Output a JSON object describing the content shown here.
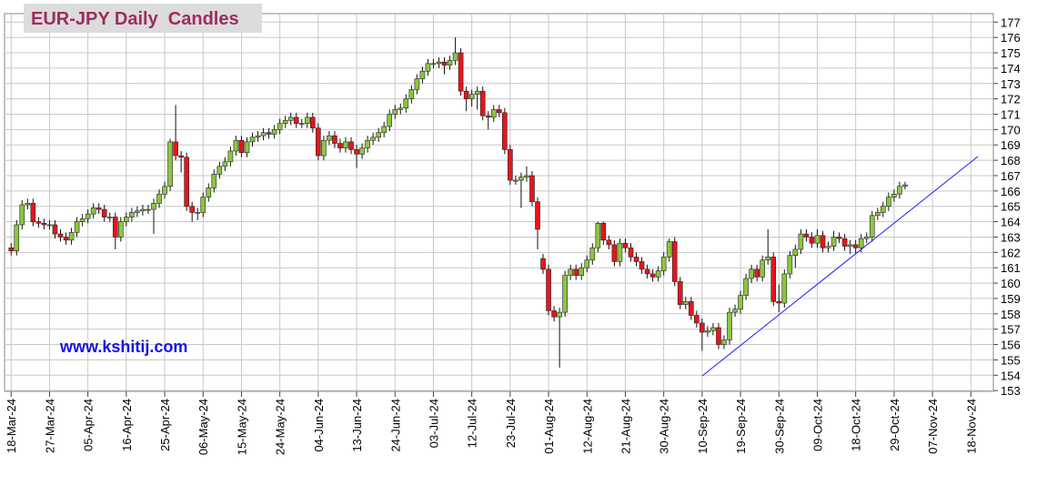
{
  "chart_data": {
    "type": "candlestick",
    "title": "EUR-JPY Daily  Candles",
    "watermark": "www.kshitij.com",
    "up_color": "#8cc63f",
    "down_color": "#e8141c",
    "grid": true,
    "xlim": [
      -1.2,
      179.1
    ],
    "xticks": [
      {
        "value": 0,
        "label": "18-Mar-24"
      },
      {
        "value": 7,
        "label": "27-Mar-24"
      },
      {
        "value": 14,
        "label": "05-Apr-24"
      },
      {
        "value": 21,
        "label": "16-Apr-24"
      },
      {
        "value": 28,
        "label": "25-Apr-24"
      },
      {
        "value": 35,
        "label": "06-May-24"
      },
      {
        "value": 42,
        "label": "15-May-24"
      },
      {
        "value": 49,
        "label": "24-May-24"
      },
      {
        "value": 56,
        "label": "04-Jun-24"
      },
      {
        "value": 63,
        "label": "13-Jun-24"
      },
      {
        "value": 70,
        "label": "24-Jun-24"
      },
      {
        "value": 77,
        "label": "03-Jul-24"
      },
      {
        "value": 84,
        "label": "12-Jul-24"
      },
      {
        "value": 91,
        "label": "23-Jul-24"
      },
      {
        "value": 98,
        "label": "01-Aug-24"
      },
      {
        "value": 105,
        "label": "12-Aug-24"
      },
      {
        "value": 112,
        "label": "21-Aug-24"
      },
      {
        "value": 119,
        "label": "30-Aug-24"
      },
      {
        "value": 126,
        "label": "10-Sep-24"
      },
      {
        "value": 133,
        "label": "19-Sep-24"
      },
      {
        "value": 140,
        "label": "30-Sep-24"
      },
      {
        "value": 147,
        "label": "09-Oct-24"
      },
      {
        "value": 154,
        "label": "18-Oct-24"
      },
      {
        "value": 161,
        "label": "29-Oct-24"
      },
      {
        "value": 168,
        "label": "07-Nov-24"
      },
      {
        "value": 175,
        "label": "18-Nov-24"
      }
    ],
    "ylim": [
      152.95,
      177.55
    ],
    "yticks": [
      153,
      154,
      155,
      156,
      157,
      158,
      159,
      160,
      161,
      162,
      163,
      164,
      165,
      166,
      167,
      168,
      169,
      170,
      171,
      172,
      173,
      174,
      175,
      176,
      177
    ],
    "x": [
      0,
      1,
      2,
      3,
      4,
      5,
      6,
      7,
      8,
      9,
      10,
      11,
      12,
      13,
      14,
      15,
      16,
      17,
      18,
      19,
      20,
      21,
      22,
      23,
      24,
      25,
      26,
      27,
      28,
      29,
      30,
      31,
      32,
      33,
      34,
      35,
      36,
      37,
      38,
      39,
      40,
      41,
      42,
      43,
      44,
      45,
      46,
      47,
      48,
      49,
      50,
      51,
      52,
      53,
      54,
      55,
      56,
      57,
      58,
      59,
      60,
      61,
      62,
      63,
      64,
      65,
      66,
      67,
      68,
      69,
      70,
      71,
      72,
      73,
      74,
      75,
      76,
      77,
      78,
      79,
      80,
      81,
      82,
      83,
      84,
      85,
      86,
      87,
      88,
      89,
      90,
      91,
      92,
      93,
      94,
      95,
      96,
      97,
      98,
      99,
      100,
      101,
      102,
      103,
      104,
      105,
      106,
      107,
      108,
      109,
      110,
      111,
      112,
      113,
      114,
      115,
      116,
      117,
      118,
      119,
      120,
      121,
      122,
      123,
      124,
      125,
      126,
      127,
      128,
      129,
      130,
      131,
      132,
      133,
      134,
      135,
      136,
      137,
      138,
      139,
      140,
      141,
      142,
      143,
      144,
      145,
      146,
      147,
      148,
      149,
      150,
      151,
      152,
      153,
      154,
      155,
      156,
      157,
      158,
      159,
      160,
      161,
      162,
      163
    ],
    "open": [
      162.3,
      162.1,
      163.8,
      165.1,
      165.2,
      164.0,
      163.9,
      163.8,
      163.8,
      163.2,
      163.0,
      162.8,
      163.3,
      164.0,
      164.2,
      164.5,
      164.9,
      164.8,
      164.3,
      164.3,
      163.0,
      164.0,
      164.3,
      164.6,
      164.7,
      164.8,
      164.8,
      165.2,
      165.8,
      166.3,
      169.2,
      168.3,
      168.2,
      165.0,
      164.6,
      164.6,
      165.6,
      166.2,
      167.1,
      167.6,
      167.9,
      168.6,
      169.3,
      168.5,
      169.2,
      169.5,
      169.6,
      169.8,
      169.7,
      170.0,
      170.4,
      170.6,
      170.8,
      170.4,
      170.4,
      170.8,
      170.1,
      168.3,
      169.3,
      169.6,
      169.1,
      168.8,
      169.2,
      168.7,
      168.4,
      168.8,
      169.3,
      169.5,
      169.8,
      170.2,
      171.0,
      171.3,
      171.4,
      172.0,
      172.6,
      173.3,
      173.8,
      174.3,
      174.3,
      174.4,
      174.2,
      174.5,
      175.0,
      172.5,
      172.0,
      172.3,
      172.5,
      170.9,
      170.8,
      171.3,
      171.1,
      168.7,
      166.7,
      166.7,
      166.9,
      167.0,
      165.3,
      161.6,
      160.9,
      158.2,
      157.8,
      158.1,
      160.5,
      160.9,
      160.5,
      161.0,
      161.5,
      162.3,
      163.9,
      162.8,
      162.5,
      161.4,
      162.6,
      162.3,
      161.7,
      161.4,
      160.9,
      160.6,
      160.4,
      160.8,
      161.7,
      162.7,
      160.1,
      158.6,
      158.8,
      157.9,
      157.4,
      156.8,
      156.9,
      157.1,
      156.0,
      156.3,
      158.1,
      158.3,
      159.2,
      160.3,
      160.9,
      160.4,
      161.5,
      161.7,
      158.8,
      158.7,
      160.6,
      161.8,
      162.2,
      163.2,
      163.0,
      162.6,
      163.1,
      162.3,
      162.4,
      163.0,
      162.9,
      162.4,
      162.5,
      162.3,
      162.9,
      163.0,
      164.4,
      164.6,
      165.0,
      165.6,
      165.8,
      166.3
    ],
    "high": [
      162.6,
      164.1,
      165.4,
      165.5,
      165.5,
      164.3,
      164.2,
      164.1,
      164.1,
      163.5,
      163.3,
      163.6,
      164.3,
      164.5,
      164.8,
      165.2,
      165.2,
      165.1,
      164.6,
      164.6,
      164.3,
      164.6,
      164.9,
      165.0,
      165.1,
      165.1,
      165.5,
      166.1,
      166.6,
      169.4,
      171.6,
      168.6,
      168.5,
      165.3,
      164.9,
      165.9,
      166.5,
      167.4,
      167.9,
      168.2,
      168.9,
      169.6,
      169.6,
      169.5,
      169.8,
      169.9,
      170.1,
      170.1,
      170.3,
      170.7,
      170.9,
      171.1,
      171.1,
      170.7,
      171.1,
      171.1,
      170.4,
      169.6,
      169.9,
      169.9,
      169.4,
      169.5,
      169.5,
      169.0,
      169.1,
      169.6,
      169.8,
      170.1,
      170.5,
      171.3,
      171.6,
      171.7,
      172.3,
      172.9,
      173.6,
      174.1,
      174.6,
      174.6,
      174.7,
      174.7,
      174.8,
      176.0,
      175.3,
      172.8,
      172.6,
      172.8,
      172.8,
      171.2,
      171.6,
      171.6,
      171.4,
      169.0,
      167.0,
      167.2,
      167.6,
      167.3,
      165.6,
      161.9,
      161.2,
      158.5,
      158.4,
      160.8,
      161.2,
      161.2,
      161.3,
      161.8,
      162.6,
      164.0,
      164.0,
      163.1,
      162.8,
      162.9,
      162.9,
      162.6,
      162.0,
      161.7,
      161.2,
      160.9,
      161.1,
      162.0,
      162.9,
      163.0,
      160.4,
      159.1,
      159.1,
      158.2,
      157.7,
      157.2,
      157.4,
      157.4,
      156.6,
      158.4,
      158.6,
      159.5,
      160.6,
      161.2,
      161.2,
      161.8,
      163.5,
      162.0,
      159.9,
      160.9,
      162.1,
      162.5,
      163.5,
      163.5,
      163.3,
      163.5,
      163.4,
      162.7,
      163.4,
      163.3,
      163.2,
      162.8,
      162.8,
      163.2,
      163.3,
      164.7,
      164.9,
      165.3,
      165.9,
      166.1,
      166.6,
      166.6
    ],
    "low": [
      161.8,
      161.8,
      163.5,
      164.8,
      163.7,
      163.6,
      163.5,
      163.5,
      162.9,
      162.7,
      162.5,
      162.5,
      163.0,
      163.7,
      163.9,
      164.2,
      164.5,
      164.0,
      164.0,
      162.2,
      162.7,
      163.7,
      164.0,
      164.3,
      164.4,
      164.5,
      163.2,
      164.9,
      165.5,
      166.0,
      168.0,
      167.2,
      164.7,
      164.0,
      164.1,
      164.3,
      165.3,
      165.9,
      166.8,
      167.3,
      167.6,
      168.3,
      168.2,
      168.2,
      168.9,
      169.2,
      169.3,
      169.4,
      169.4,
      169.7,
      170.1,
      170.3,
      170.1,
      170.1,
      170.1,
      169.8,
      168.0,
      168.0,
      169.0,
      168.8,
      168.5,
      168.5,
      168.4,
      167.5,
      168.1,
      168.5,
      169.0,
      169.2,
      169.5,
      169.9,
      170.7,
      171.0,
      171.1,
      171.7,
      172.3,
      173.0,
      173.5,
      174.0,
      174.0,
      173.6,
      173.9,
      174.2,
      172.2,
      171.2,
      171.5,
      171.3,
      170.6,
      170.0,
      170.5,
      170.8,
      168.4,
      166.4,
      166.4,
      164.9,
      166.6,
      165.0,
      162.2,
      160.6,
      157.9,
      157.5,
      154.5,
      157.8,
      160.2,
      160.2,
      160.2,
      160.7,
      161.2,
      162.0,
      162.5,
      162.2,
      161.1,
      161.1,
      162.0,
      161.4,
      161.1,
      160.6,
      160.3,
      160.1,
      160.1,
      160.5,
      161.4,
      159.8,
      158.3,
      158.3,
      157.6,
      157.1,
      155.6,
      156.5,
      156.6,
      155.7,
      155.7,
      156.0,
      157.8,
      158.0,
      158.9,
      160.0,
      160.1,
      160.1,
      161.2,
      158.5,
      158.1,
      158.4,
      160.3,
      161.0,
      161.9,
      162.7,
      162.3,
      162.3,
      162.0,
      162.0,
      162.1,
      162.6,
      162.1,
      161.9,
      161.9,
      162.0,
      162.6,
      162.7,
      164.1,
      164.3,
      164.7,
      165.3,
      165.5,
      166.1
    ],
    "close": [
      162.1,
      163.8,
      165.1,
      165.2,
      164.0,
      163.9,
      163.8,
      163.8,
      163.2,
      163.0,
      162.8,
      163.3,
      164.0,
      164.2,
      164.5,
      164.9,
      164.8,
      164.3,
      164.3,
      163.0,
      164.0,
      164.3,
      164.6,
      164.7,
      164.8,
      164.8,
      165.2,
      165.8,
      166.3,
      169.2,
      168.3,
      168.2,
      165.0,
      164.6,
      164.6,
      165.6,
      166.2,
      167.1,
      167.6,
      167.9,
      168.6,
      169.3,
      168.5,
      169.2,
      169.5,
      169.6,
      169.8,
      169.7,
      170.0,
      170.4,
      170.6,
      170.8,
      170.4,
      170.4,
      170.8,
      170.1,
      168.3,
      169.3,
      169.6,
      169.1,
      168.8,
      169.2,
      168.7,
      168.4,
      168.8,
      169.3,
      169.5,
      169.8,
      170.2,
      171.0,
      171.3,
      171.4,
      172.0,
      172.6,
      173.3,
      173.8,
      174.3,
      174.3,
      174.4,
      174.2,
      174.5,
      175.0,
      172.5,
      172.0,
      172.3,
      172.5,
      170.9,
      170.8,
      171.3,
      171.1,
      168.7,
      166.7,
      166.7,
      166.9,
      167.0,
      165.3,
      163.5,
      160.9,
      158.2,
      157.8,
      158.1,
      160.5,
      160.9,
      160.5,
      161.0,
      161.5,
      162.3,
      163.9,
      162.8,
      162.5,
      161.4,
      162.6,
      162.3,
      161.7,
      161.4,
      160.9,
      160.6,
      160.4,
      160.8,
      161.7,
      162.7,
      160.1,
      158.6,
      158.8,
      157.9,
      157.4,
      156.8,
      156.9,
      157.1,
      156.0,
      156.3,
      158.1,
      158.3,
      159.2,
      160.3,
      160.9,
      160.4,
      161.5,
      161.7,
      158.8,
      158.7,
      160.6,
      161.8,
      162.2,
      163.2,
      163.0,
      162.6,
      163.1,
      162.3,
      162.4,
      163.0,
      162.9,
      162.4,
      162.5,
      162.3,
      162.9,
      163.0,
      164.4,
      164.6,
      165.0,
      165.6,
      165.8,
      166.3,
      166.4
    ],
    "trendline": {
      "x": [
        126,
        176.3
      ],
      "y": [
        153.95,
        168.25
      ],
      "color": "#1c1cff"
    }
  }
}
